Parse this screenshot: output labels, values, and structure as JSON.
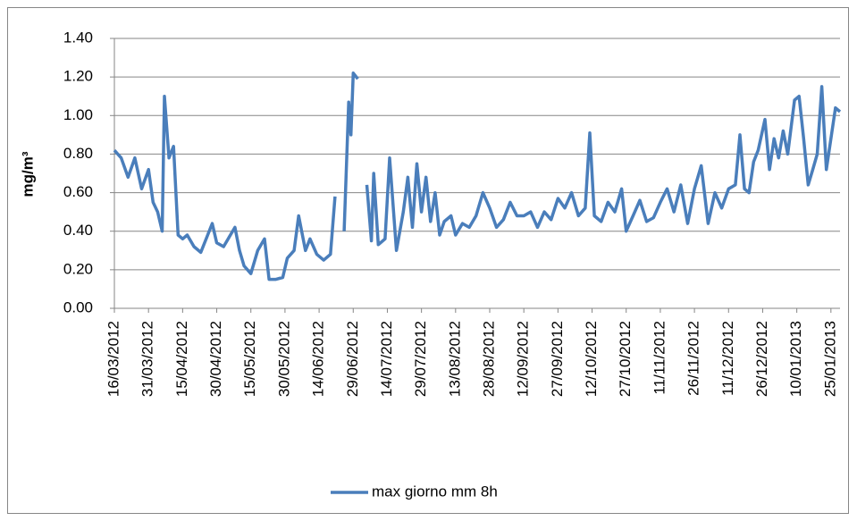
{
  "chart_data": {
    "type": "line",
    "y_label": "mg/m³",
    "legend_position": "bottom",
    "grid": true,
    "ylim": [
      0,
      1.4
    ],
    "yticks": [
      {
        "value": 0,
        "label": "0.00"
      },
      {
        "value": 0.2,
        "label": "0.20"
      },
      {
        "value": 0.4,
        "label": "0.40"
      },
      {
        "value": 0.6,
        "label": "0.60"
      },
      {
        "value": 0.8,
        "label": "0.80"
      },
      {
        "value": 1,
        "label": "1.00"
      },
      {
        "value": 1.2,
        "label": "1.20"
      },
      {
        "value": 1.4,
        "label": "1.40"
      }
    ],
    "xlim": [
      "16/03/2012",
      "29/01/2013"
    ],
    "xticks": [
      "16/03/2012",
      "31/03/2012",
      "15/04/2012",
      "30/04/2012",
      "15/05/2012",
      "30/05/2012",
      "14/06/2012",
      "29/06/2012",
      "14/07/2012",
      "29/07/2012",
      "13/08/2012",
      "28/08/2012",
      "12/09/2012",
      "27/09/2012",
      "12/10/2012",
      "27/10/2012",
      "11/11/2012",
      "26/11/2012",
      "11/12/2012",
      "26/12/2012",
      "10/01/2013",
      "25/01/2013"
    ],
    "x": [
      "16/03/2012",
      "19/03/2012",
      "22/03/2012",
      "25/03/2012",
      "28/03/2012",
      "31/03/2012",
      "02/04/2012",
      "04/04/2012",
      "06/04/2012",
      "07/04/2012",
      "09/04/2012",
      "11/04/2012",
      "13/04/2012",
      "15/04/2012",
      "17/04/2012",
      "20/04/2012",
      "23/04/2012",
      "26/04/2012",
      "28/04/2012",
      "30/04/2012",
      "03/05/2012",
      "06/05/2012",
      "08/05/2012",
      "10/05/2012",
      "12/05/2012",
      "15/05/2012",
      "18/05/2012",
      "21/05/2012",
      "23/05/2012",
      "26/05/2012",
      "29/05/2012",
      "31/05/2012",
      "03/06/2012",
      "05/06/2012",
      "08/06/2012",
      "10/06/2012",
      "13/06/2012",
      "16/06/2012",
      "19/06/2012",
      "21/06/2012",
      "23/06/2012",
      "25/06/2012",
      "27/06/2012",
      "28/06/2012",
      "29/06/2012",
      "01/07/2012",
      "03/07/2012",
      "05/07/2012",
      "07/07/2012",
      "08/07/2012",
      "10/07/2012",
      "13/07/2012",
      "15/07/2012",
      "18/07/2012",
      "21/07/2012",
      "23/07/2012",
      "25/07/2012",
      "27/07/2012",
      "29/07/2012",
      "31/07/2012",
      "02/08/2012",
      "04/08/2012",
      "06/08/2012",
      "08/08/2012",
      "11/08/2012",
      "13/08/2012",
      "16/08/2012",
      "19/08/2012",
      "22/08/2012",
      "25/08/2012",
      "28/08/2012",
      "31/08/2012",
      "03/09/2012",
      "06/09/2012",
      "09/09/2012",
      "12/09/2012",
      "15/09/2012",
      "18/09/2012",
      "21/09/2012",
      "24/09/2012",
      "27/09/2012",
      "30/09/2012",
      "03/10/2012",
      "06/10/2012",
      "09/10/2012",
      "11/10/2012",
      "13/10/2012",
      "16/10/2012",
      "19/10/2012",
      "22/10/2012",
      "25/10/2012",
      "27/10/2012",
      "30/10/2012",
      "02/11/2012",
      "05/11/2012",
      "08/11/2012",
      "11/11/2012",
      "14/11/2012",
      "17/11/2012",
      "20/11/2012",
      "23/11/2012",
      "26/11/2012",
      "29/11/2012",
      "02/12/2012",
      "05/12/2012",
      "08/12/2012",
      "11/12/2012",
      "14/12/2012",
      "16/12/2012",
      "18/12/2012",
      "20/12/2012",
      "22/12/2012",
      "24/12/2012",
      "27/12/2012",
      "29/12/2012",
      "31/12/2012",
      "02/01/2013",
      "04/01/2013",
      "06/01/2013",
      "09/01/2013",
      "11/01/2013",
      "13/01/2013",
      "15/01/2013",
      "17/01/2013",
      "19/01/2013",
      "21/01/2013",
      "23/01/2013",
      "25/01/2013",
      "27/01/2013",
      "29/01/2013"
    ],
    "series": [
      {
        "name": "max giorno mm 8h",
        "color": "#4a7ebb",
        "values": [
          0.82,
          0.78,
          0.68,
          0.78,
          0.62,
          0.72,
          0.55,
          0.5,
          0.4,
          1.1,
          0.78,
          0.84,
          0.38,
          0.36,
          0.38,
          0.32,
          0.29,
          0.38,
          0.44,
          0.34,
          0.32,
          0.38,
          0.42,
          0.3,
          0.22,
          0.18,
          0.3,
          0.36,
          0.15,
          0.15,
          0.16,
          0.26,
          0.3,
          0.48,
          0.3,
          0.36,
          0.28,
          0.25,
          0.28,
          0.58,
          null,
          0.4,
          1.07,
          0.9,
          1.22,
          1.19,
          null,
          0.64,
          0.35,
          0.7,
          0.33,
          0.36,
          0.78,
          0.3,
          0.5,
          0.68,
          0.42,
          0.75,
          0.5,
          0.68,
          0.45,
          0.6,
          0.38,
          0.45,
          0.48,
          0.38,
          0.44,
          0.42,
          0.48,
          0.6,
          0.52,
          0.42,
          0.46,
          0.55,
          0.48,
          0.48,
          0.5,
          0.42,
          0.5,
          0.46,
          0.57,
          0.52,
          0.6,
          0.48,
          0.52,
          0.91,
          0.48,
          0.45,
          0.55,
          0.5,
          0.62,
          0.4,
          0.48,
          0.56,
          0.45,
          0.47,
          0.55,
          0.62,
          0.5,
          0.64,
          0.44,
          0.62,
          0.74,
          0.44,
          0.6,
          0.52,
          0.62,
          0.64,
          0.9,
          0.62,
          0.6,
          0.76,
          0.82,
          0.98,
          0.72,
          0.88,
          0.78,
          0.92,
          0.8,
          1.08,
          1.1,
          0.88,
          0.64,
          0.72,
          0.8,
          1.15,
          0.72,
          0.88,
          1.04,
          1.02
        ]
      }
    ]
  }
}
